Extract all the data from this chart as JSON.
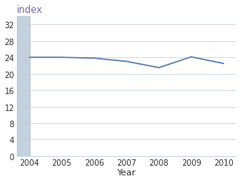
{
  "years": [
    2004,
    2005,
    2006,
    2007,
    2008,
    2009,
    2010
  ],
  "values": [
    24.0,
    24.0,
    23.8,
    23.0,
    21.5,
    24.1,
    22.5
  ],
  "line_color": "#5b7faa",
  "line_width": 1.2,
  "title": "index",
  "xlabel": "Year",
  "ylim": [
    0,
    34
  ],
  "yticks": [
    0,
    4,
    8,
    12,
    16,
    20,
    24,
    28,
    32
  ],
  "xlim": [
    2003.6,
    2010.4
  ],
  "xticks": [
    2004,
    2005,
    2006,
    2007,
    2008,
    2009,
    2010
  ],
  "grid_color": "#c8d8e8",
  "bg_color": "#ffffff",
  "shade_xmin": 2003.6,
  "shade_xmax": 2004.0,
  "shade_color": "#b8c9d8",
  "shade_alpha": 0.85,
  "title_color": "#7b68b0",
  "tick_color": "#333333",
  "tick_fontsize": 7,
  "xlabel_fontsize": 8,
  "title_fontsize": 8.5
}
